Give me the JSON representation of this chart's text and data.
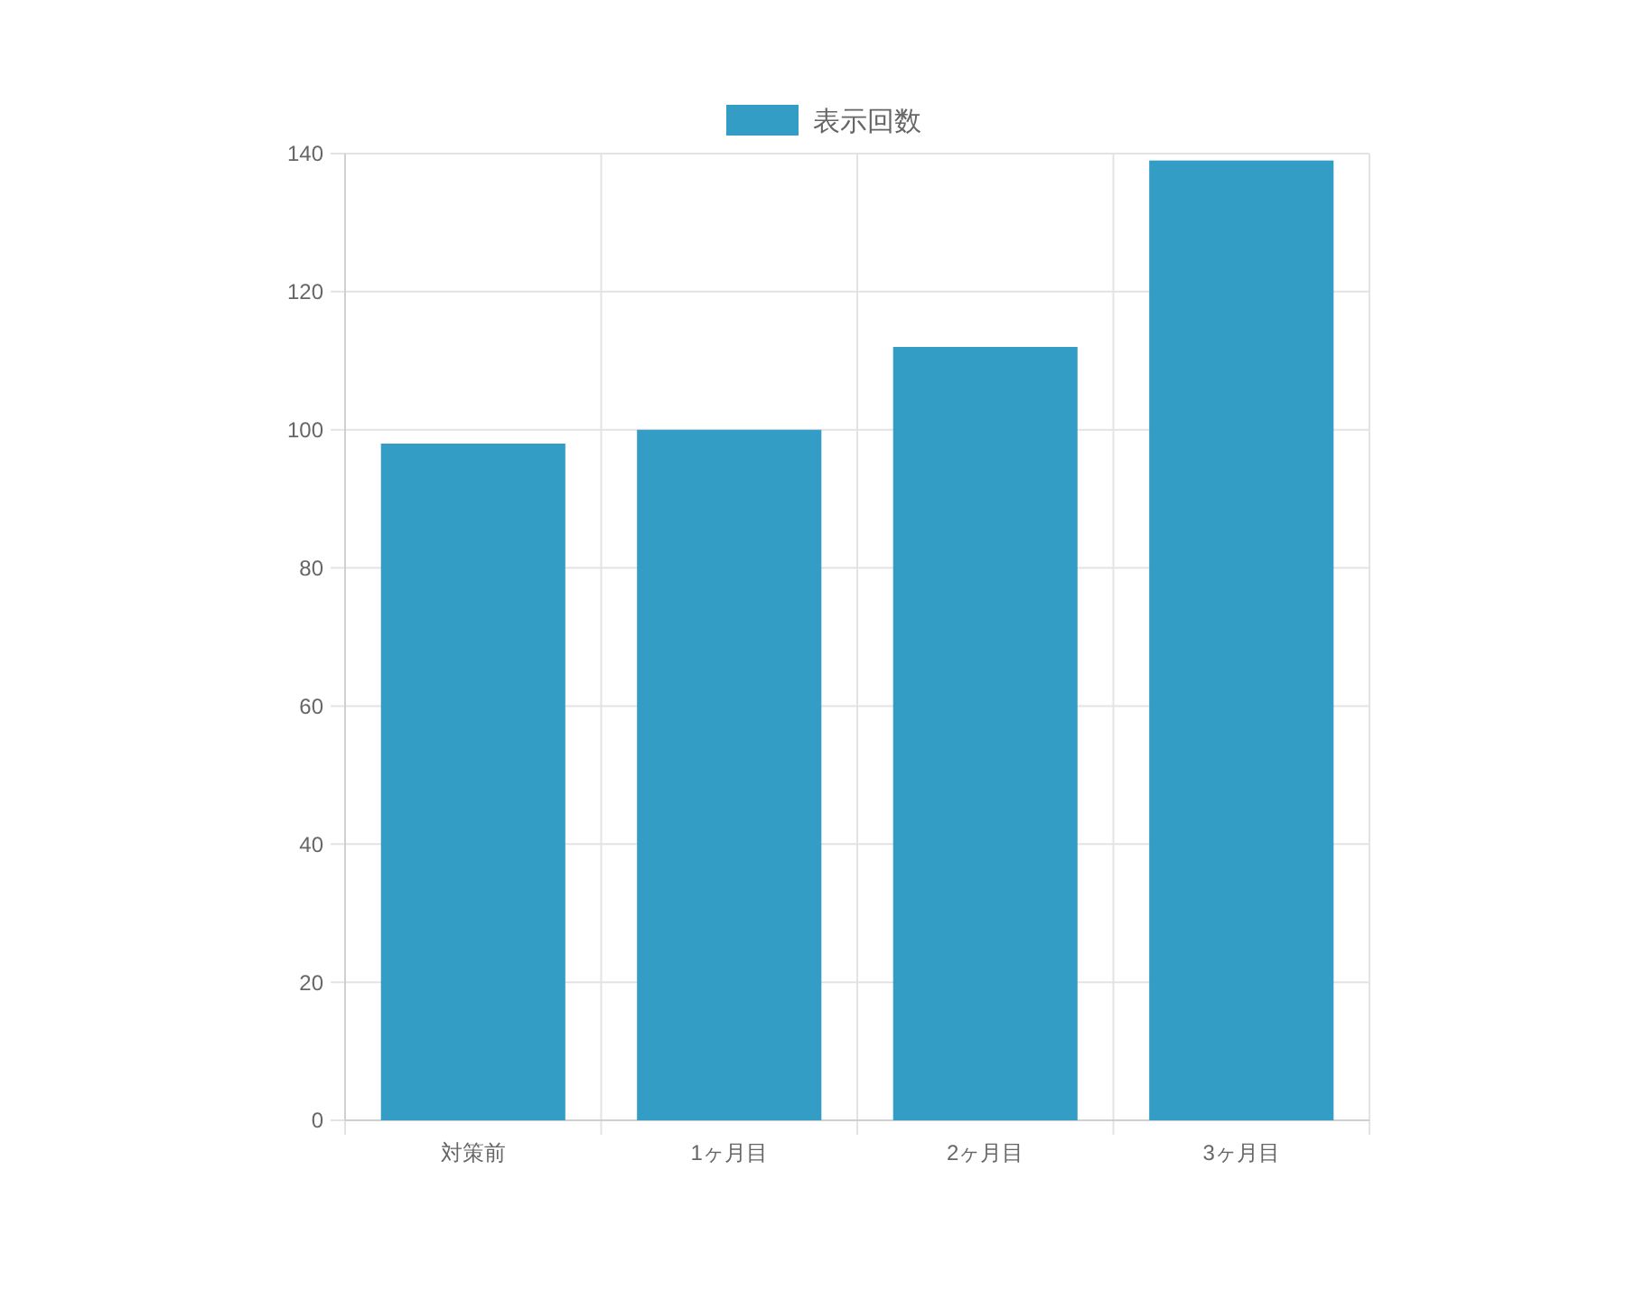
{
  "chart_data": {
    "type": "bar",
    "categories": [
      "対策前",
      "1ヶ月目",
      "2ヶ月目",
      "3ヶ月目"
    ],
    "series": [
      {
        "name": "表示回数",
        "color": "#349dc6",
        "values": [
          98,
          100,
          112,
          139
        ]
      }
    ],
    "ylim": [
      0,
      140
    ],
    "yticks": [
      0,
      20,
      40,
      60,
      80,
      100,
      120,
      140
    ],
    "grid": true,
    "legend": "top"
  }
}
